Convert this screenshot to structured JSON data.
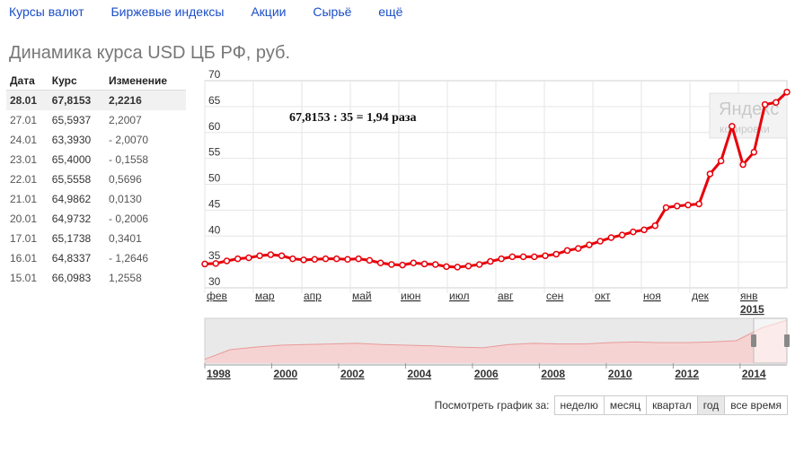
{
  "nav": [
    "Курсы валют",
    "Биржевые индексы",
    "Акции",
    "Сырьё",
    "ещё"
  ],
  "title": "Динамика курса USD ЦБ РФ, руб.",
  "table": {
    "headers": [
      "Дата",
      "Курс",
      "Изменение"
    ],
    "rows": [
      [
        "28.01",
        "67,8153",
        "2,2216"
      ],
      [
        "27.01",
        "65,5937",
        "2,2007"
      ],
      [
        "24.01",
        "63,3930",
        "- 2,0070"
      ],
      [
        "23.01",
        "65,4000",
        "- 0,1558"
      ],
      [
        "22.01",
        "65,5558",
        "0,5696"
      ],
      [
        "21.01",
        "64,9862",
        "0,0130"
      ],
      [
        "20.01",
        "64,9732",
        "- 0,2006"
      ],
      [
        "17.01",
        "65,1738",
        "0,3401"
      ],
      [
        "16.01",
        "64,8337",
        "- 1,2646"
      ],
      [
        "15.01",
        "66,0983",
        "1,2558"
      ]
    ]
  },
  "chart_data": {
    "type": "line",
    "annotation": "67,8153 : 35 = 1,94 раза",
    "watermark": [
      "Яндекс",
      "котировки"
    ],
    "ylim": [
      30,
      70
    ],
    "y_ticks": [
      30,
      35,
      40,
      45,
      50,
      55,
      60,
      65,
      70
    ],
    "x_ticks": [
      "фев",
      "мар",
      "апр",
      "май",
      "июн",
      "июл",
      "авг",
      "сен",
      "окт",
      "ноя",
      "дек",
      "янв"
    ],
    "x_year_label": "2015",
    "series": [
      {
        "values": [
          34.6,
          34.7,
          35.2,
          35.6,
          35.8,
          36.2,
          36.4,
          36.2,
          35.6,
          35.4,
          35.5,
          35.6,
          35.6,
          35.5,
          35.6,
          35.3,
          34.8,
          34.5,
          34.4,
          34.8,
          34.6,
          34.5,
          34.1,
          34.0,
          34.2,
          34.5,
          35.1,
          35.6,
          36.0,
          36.0,
          36.0,
          36.2,
          36.5,
          37.2,
          37.6,
          38.3,
          39.0,
          39.7,
          40.2,
          40.8,
          41.2,
          42.0,
          45.5,
          45.8,
          46.0,
          46.2,
          52.0,
          54.5,
          61.2,
          53.8,
          56.2,
          65.4,
          65.8,
          67.8
        ]
      }
    ],
    "overview": {
      "x_ticks": [
        "1998",
        "2000",
        "2002",
        "2004",
        "2006",
        "2008",
        "2010",
        "2012",
        "2014"
      ],
      "values": [
        6,
        21,
        25,
        28,
        29,
        30,
        31,
        29,
        28,
        27,
        25,
        24,
        29,
        31,
        30,
        30,
        32,
        33,
        32,
        32,
        33,
        35,
        55,
        67
      ]
    }
  },
  "period": {
    "label": "Посмотреть график за:",
    "buttons": [
      "неделю",
      "месяц",
      "квартал",
      "год",
      "все время"
    ],
    "active": "год"
  },
  "colors": {
    "line": "#e8000a",
    "overview_fill": "#f6d3d3",
    "overview_line": "#e89a9a"
  }
}
